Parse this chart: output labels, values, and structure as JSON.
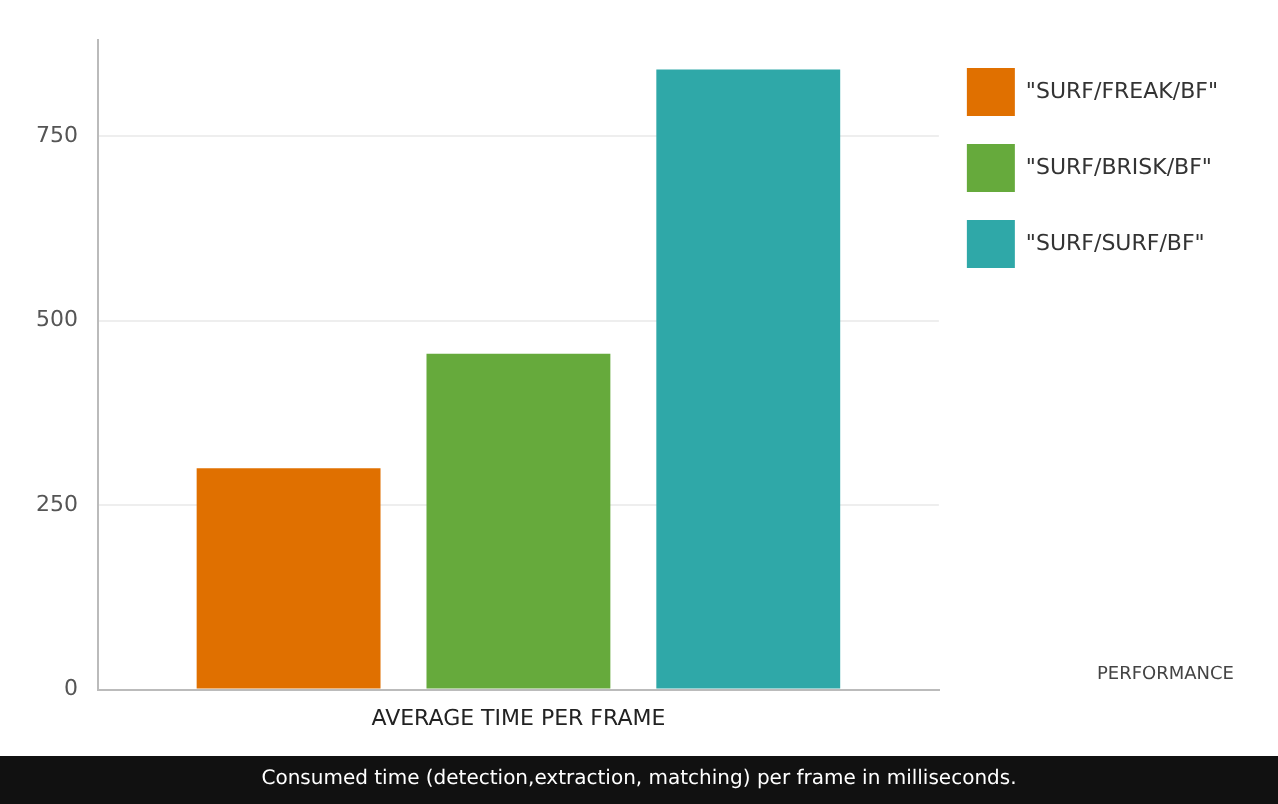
{
  "chart_data": {
    "type": "bar",
    "categories": [
      "AVERAGE TIME PER FRAME"
    ],
    "series": [
      {
        "name": "\"SURF/FREAK/BF\"",
        "color": "#e07000",
        "values": [
          300
        ]
      },
      {
        "name": "\"SURF/BRISK/BF\"",
        "color": "#66aa3c",
        "values": [
          455
        ]
      },
      {
        "name": "\"SURF/SURF/BF\"",
        "color": "#2fa8a8",
        "values": [
          840
        ]
      }
    ],
    "ylim": [
      0,
      880
    ],
    "yticks": [
      0,
      250,
      500,
      750
    ],
    "grid": "y",
    "legend": "top right",
    "annotations": [
      "PERFORMANCE",
      "Consumed time (detection,extraction, matching) per frame in milliseconds."
    ]
  }
}
